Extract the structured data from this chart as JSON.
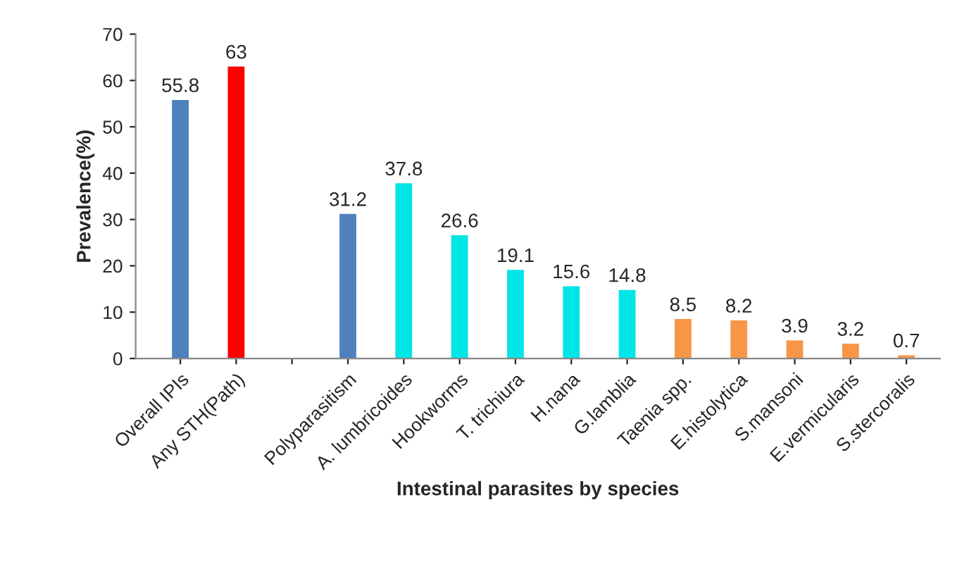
{
  "chart_data": {
    "type": "bar",
    "xlabel": "Intestinal parasites by species",
    "ylabel": "Prevalence(%)",
    "categories": [
      "Overall IPIs",
      "Any STH(Path)",
      null,
      "Polyparasitism",
      "A. lumbricoides",
      "Hookworms",
      "T. trichiura",
      "H.nana",
      "G.lamblia",
      "Taenia spp.",
      "E.histolytica",
      "S.mansoni",
      "E.vermicularis",
      "S.stercoralis"
    ],
    "values": [
      55.8,
      63,
      null,
      31.2,
      37.8,
      26.6,
      19.1,
      15.6,
      14.8,
      8.5,
      8.2,
      3.9,
      3.2,
      0.7
    ],
    "colors": [
      "#4f81bd",
      "#ff0000",
      null,
      "#4f81bd",
      "#00e5e5",
      "#00e5e5",
      "#00e5e5",
      "#00e5e5",
      "#00e5e5",
      "#f79646",
      "#f79646",
      "#f79646",
      "#f79646",
      "#f79646"
    ],
    "ylim": [
      0,
      70
    ],
    "yticks": [
      0,
      10,
      20,
      30,
      40,
      50,
      60,
      70
    ],
    "data_labels": true,
    "grid": false,
    "legend": false
  }
}
